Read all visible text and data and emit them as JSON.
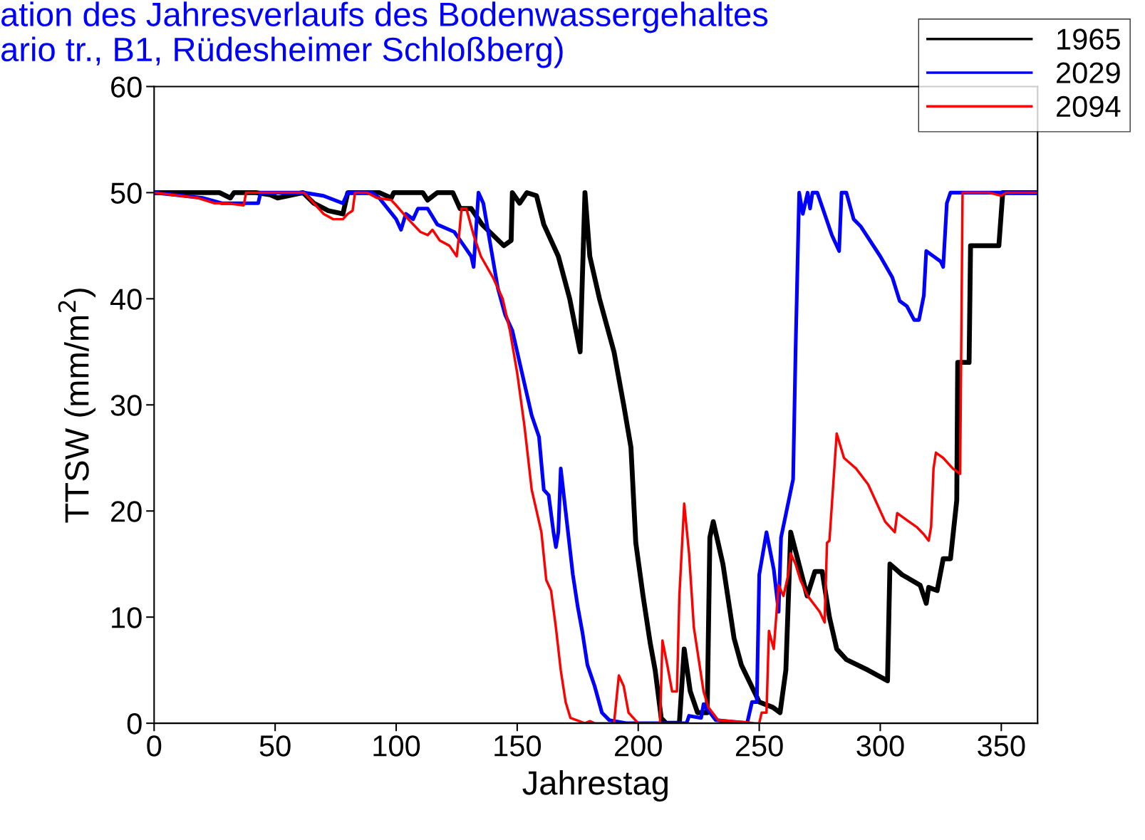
{
  "chart_data": {
    "type": "line",
    "title": "ation des Jahresverlaufs des Bodenwassergehaltes\nario tr., B1, Rüdesheimer Schloßberg)",
    "xlabel": "Jahrestag",
    "ylabel": "TTSW (mm/m$^{2}$)",
    "xlim": [
      0,
      365
    ],
    "xticks": [
      0,
      50,
      100,
      150,
      200,
      250,
      300,
      350
    ],
    "ylim": [
      0,
      60
    ],
    "yticks": [
      0,
      10,
      20,
      30,
      40,
      50,
      60
    ],
    "grid": false,
    "legend": "top right",
    "marker": "none",
    "line_style": "solid",
    "series": [
      {
        "name": "1965",
        "color": "#000000",
        "x": [
          0,
          27,
          31.5,
          33,
          42,
          48,
          51,
          61.5,
          66,
          72,
          78,
          80,
          93,
          98,
          99,
          101,
          111,
          113,
          117,
          123.4,
          126.4,
          131,
          135.5,
          144.5,
          147.5,
          148,
          151,
          154,
          158,
          161,
          167,
          171.7,
          176,
          178,
          180,
          184,
          190,
          194,
          197,
          199,
          202,
          205,
          207,
          209.5,
          211.5,
          217,
          219,
          221.5,
          224.5,
          228.5,
          229.6,
          231,
          235,
          239.6,
          242.6,
          250,
          255.6,
          258.6,
          261,
          263,
          269.8,
          273,
          276,
          279,
          282,
          286,
          295,
          303,
          304,
          309,
          316.5,
          319,
          320,
          323.5,
          326,
          329,
          331.6,
          332,
          336.7,
          337.3,
          349,
          350.6,
          365
        ],
        "values": [
          50,
          50,
          49.5,
          50,
          50,
          49.8,
          49.5,
          50,
          49,
          48.3,
          48,
          50,
          50,
          49.5,
          50,
          50,
          50,
          49.3,
          50,
          50,
          48.5,
          48.5,
          47,
          45,
          45.5,
          50,
          49,
          50,
          49.7,
          47,
          44,
          40,
          35,
          50,
          44,
          40,
          35,
          30,
          26,
          17,
          12,
          7.5,
          5,
          0.5,
          0,
          0,
          7,
          3,
          1,
          1,
          17.5,
          19,
          15,
          8,
          5.5,
          2,
          1.5,
          1,
          5,
          18,
          12,
          14.3,
          14.3,
          10,
          7,
          6,
          5,
          4,
          15,
          14,
          13,
          11.3,
          12.8,
          12.5,
          15.5,
          15.5,
          21,
          34,
          34,
          45,
          45,
          50,
          50
        ]
      },
      {
        "name": "2029",
        "color": "#0000ff",
        "x": [
          0,
          20,
          28,
          43,
          44,
          62,
          70,
          78,
          80,
          90,
          93,
          100,
          102,
          104,
          107,
          109,
          113,
          117,
          124,
          128,
          131,
          132,
          134,
          136,
          139,
          142,
          145,
          148,
          152,
          156,
          159,
          161,
          163,
          165,
          166,
          167,
          168,
          170,
          173,
          175,
          177,
          179,
          182,
          185,
          188,
          195,
          220,
          221,
          226,
          227,
          229,
          232,
          245,
          247,
          249,
          250,
          253,
          256,
          258,
          259,
          261,
          264,
          265,
          266.5,
          268,
          270,
          271,
          272,
          274,
          277,
          280,
          283,
          284,
          286,
          289,
          292,
          300,
          305,
          308,
          311,
          314,
          316,
          318,
          319,
          322,
          325,
          326,
          327.5,
          329,
          365
        ],
        "values": [
          50,
          49.5,
          49,
          49,
          50,
          50,
          49.7,
          49,
          50,
          50,
          49.5,
          47.5,
          46.5,
          48,
          47.5,
          48.5,
          48.5,
          47,
          46.3,
          45,
          44,
          43,
          50,
          49,
          45,
          41,
          38.5,
          37,
          33,
          29,
          27,
          22,
          21.5,
          18,
          16.6,
          18,
          24,
          20,
          14,
          11,
          8.5,
          5.5,
          3.5,
          1,
          0.3,
          0,
          0,
          0.7,
          0.5,
          1.8,
          1.2,
          0.3,
          0,
          2,
          2,
          14,
          18,
          14.5,
          10.5,
          17.5,
          19.7,
          23,
          35,
          50,
          48,
          50,
          48.5,
          50,
          50,
          48,
          46,
          44.5,
          50,
          50,
          47.5,
          46.8,
          44,
          42,
          39.8,
          39.3,
          38,
          38,
          40.3,
          44.5,
          44,
          43.5,
          43,
          49,
          50,
          50
        ]
      },
      {
        "name": "2094",
        "color": "#ff0000",
        "x": [
          0,
          18,
          25,
          30,
          37,
          38,
          62,
          66,
          70,
          74,
          78,
          80,
          82,
          83,
          88,
          92,
          98,
          100,
          105,
          110,
          113,
          115,
          118,
          122,
          125,
          126,
          127,
          129,
          132,
          135,
          140,
          144,
          147,
          150,
          153,
          156,
          158,
          160,
          162,
          164,
          166,
          168,
          170,
          172,
          178,
          180,
          182,
          190,
          192,
          194,
          196,
          200,
          209,
          210,
          212,
          214,
          216,
          217,
          219,
          221,
          223,
          225,
          227,
          229,
          233,
          245,
          248,
          250,
          251,
          253,
          254,
          256,
          258,
          260,
          262,
          263,
          265,
          267,
          270,
          275,
          277,
          278,
          279,
          282,
          285,
          290,
          295,
          298,
          302,
          306,
          307,
          310,
          315,
          318,
          320,
          321,
          322,
          323,
          326,
          330,
          333,
          334,
          345,
          350,
          352,
          365
        ],
        "values": [
          50,
          49.5,
          49,
          49,
          48.8,
          50,
          50,
          49,
          48,
          47.5,
          47.5,
          48,
          48.3,
          50,
          50,
          49.5,
          49.3,
          48.8,
          47.5,
          46.3,
          46,
          46.5,
          45.5,
          45,
          44,
          46,
          48.5,
          48.5,
          46,
          44,
          42,
          40,
          37,
          33,
          28,
          22,
          20,
          18,
          13.5,
          12.5,
          9,
          5,
          2,
          0.5,
          0,
          0.2,
          0,
          0,
          4.5,
          3.5,
          1,
          0,
          0,
          7.8,
          5.5,
          3,
          3,
          12,
          20.7,
          16,
          9,
          6,
          3,
          1.5,
          0.3,
          0.1,
          0,
          0,
          1,
          1,
          8.7,
          7,
          13,
          12,
          14,
          16,
          15,
          13.5,
          12,
          10.5,
          9.5,
          17,
          17.2,
          27.3,
          25,
          24,
          22.5,
          21,
          19,
          18,
          19.8,
          19.3,
          18.5,
          17.8,
          17.2,
          18.5,
          24,
          25.5,
          25,
          24,
          23.5,
          50,
          50,
          49.7,
          50,
          50
        ]
      }
    ]
  }
}
